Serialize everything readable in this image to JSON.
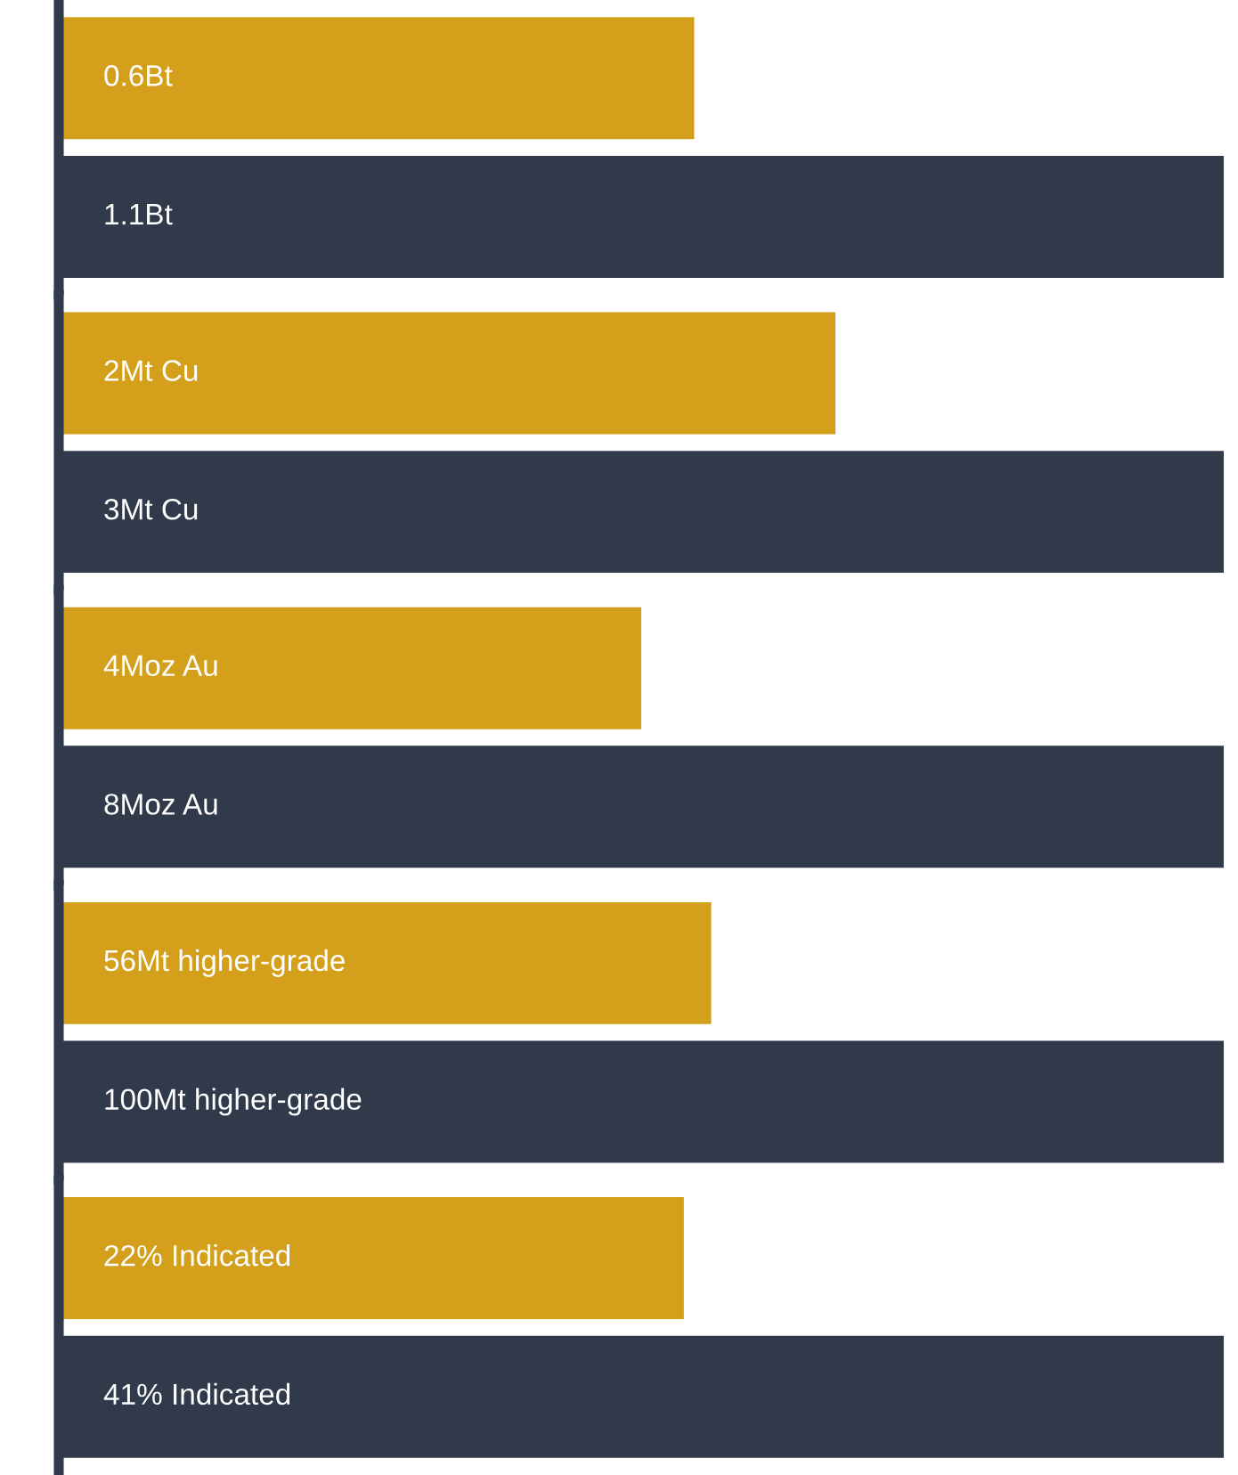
{
  "chart_data": [
    {
      "type": "bar",
      "orientation": "horizontal",
      "categories": [
        null
      ],
      "series": [
        {
          "color": "#d4a01c",
          "values": [
            0.6
          ],
          "value_labels": [
            "0.6Bt"
          ]
        },
        {
          "color": "#313a4a",
          "values": [
            1.1
          ],
          "value_labels": [
            "1.1Bt"
          ]
        }
      ]
    },
    {
      "type": "bar",
      "orientation": "horizontal",
      "categories": [
        null
      ],
      "series": [
        {
          "color": "#d4a01c",
          "values": [
            2
          ],
          "value_labels": [
            "2Mt Cu"
          ]
        },
        {
          "color": "#313a4a",
          "values": [
            3
          ],
          "value_labels": [
            "3Mt Cu"
          ]
        }
      ]
    },
    {
      "type": "bar",
      "orientation": "horizontal",
      "categories": [
        null
      ],
      "series": [
        {
          "color": "#d4a01c",
          "values": [
            4
          ],
          "value_labels": [
            "4Moz Au"
          ]
        },
        {
          "color": "#313a4a",
          "values": [
            8
          ],
          "value_labels": [
            "8Moz Au"
          ]
        }
      ]
    },
    {
      "type": "bar",
      "orientation": "horizontal",
      "categories": [
        null
      ],
      "series": [
        {
          "color": "#d4a01c",
          "values": [
            56
          ],
          "value_labels": [
            "56Mt higher-grade"
          ]
        },
        {
          "color": "#313a4a",
          "values": [
            100
          ],
          "value_labels": [
            "100Mt higher-grade"
          ]
        }
      ]
    },
    {
      "type": "bar",
      "orientation": "horizontal",
      "categories": [
        null
      ],
      "series": [
        {
          "color": "#d4a01c",
          "values": [
            22
          ],
          "value_labels": [
            "22% Indicated"
          ]
        },
        {
          "color": "#313a4a",
          "values": [
            41
          ],
          "value_labels": [
            "41% Indicated"
          ]
        }
      ]
    }
  ]
}
